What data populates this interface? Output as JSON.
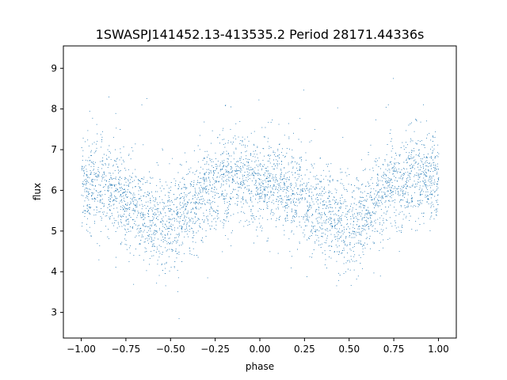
{
  "chart_data": {
    "type": "scatter",
    "title": "1SWASPJ141452.13-413535.2 Period 28171.44336s",
    "xlabel": "phase",
    "ylabel": "flux",
    "xlim": [
      -1.1,
      1.1
    ],
    "ylim": [
      2.37,
      9.55
    ],
    "xticks": [
      -1.0,
      -0.75,
      -0.5,
      -0.25,
      0.0,
      0.25,
      0.5,
      0.75,
      1.0
    ],
    "xtick_labels": [
      "−1.00",
      "−0.75",
      "−0.50",
      "−0.25",
      "0.00",
      "0.25",
      "0.50",
      "0.75",
      "1.00"
    ],
    "yticks": [
      3,
      4,
      5,
      6,
      7,
      8,
      9
    ],
    "ytick_labels": [
      "3",
      "4",
      "5",
      "6",
      "7",
      "8",
      "9"
    ],
    "grid": false,
    "marker_color": "#1f77b4",
    "series": [
      {
        "phase_range": [
          -1.0,
          1.0
        ],
        "envelope": {
          "phase": [
            -1.0,
            -0.9,
            -0.8,
            -0.7,
            -0.6,
            -0.5,
            -0.4,
            -0.3,
            -0.2,
            -0.1,
            0.0,
            0.1,
            0.2,
            0.3,
            0.4,
            0.5,
            0.6,
            0.7,
            0.8,
            0.9,
            1.0
          ],
          "flux_mean": [
            6.2,
            6.1,
            5.9,
            5.6,
            5.3,
            5.15,
            5.5,
            6.0,
            6.25,
            6.3,
            6.2,
            6.1,
            5.9,
            5.6,
            5.3,
            5.15,
            5.5,
            6.0,
            6.25,
            6.3,
            6.2
          ],
          "flux_spread": [
            0.55,
            0.55,
            0.55,
            0.55,
            0.55,
            0.55,
            0.55,
            0.55,
            0.55,
            0.55,
            0.55,
            0.55,
            0.55,
            0.55,
            0.55,
            0.55,
            0.55,
            0.55,
            0.55,
            0.55,
            0.55
          ]
        }
      }
    ]
  }
}
